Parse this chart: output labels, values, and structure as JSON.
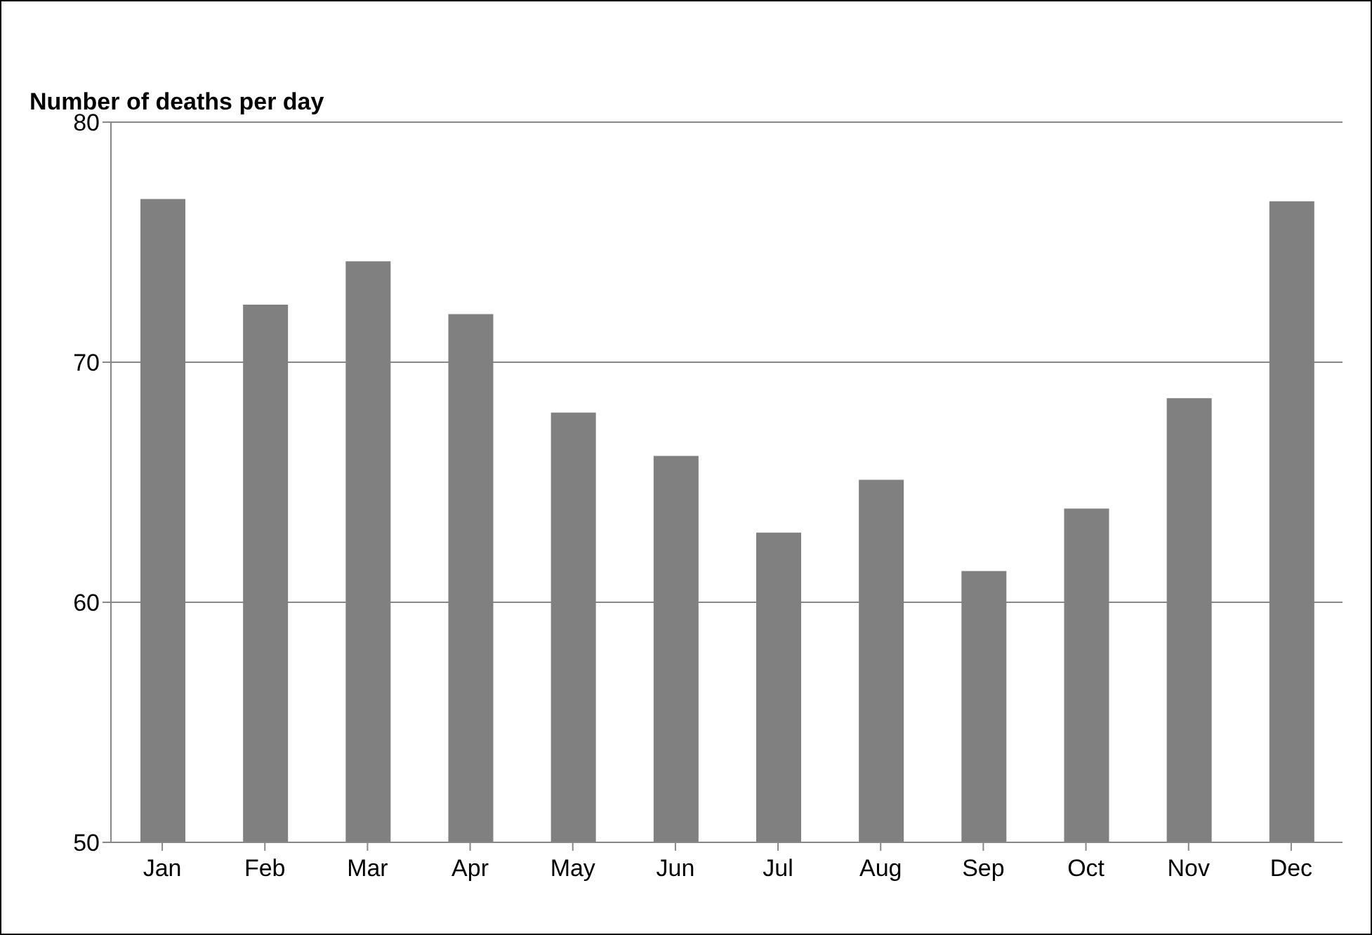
{
  "chart_data": {
    "type": "bar",
    "title": "Number of deaths per day",
    "categories": [
      "Jan",
      "Feb",
      "Mar",
      "Apr",
      "May",
      "Jun",
      "Jul",
      "Aug",
      "Sep",
      "Oct",
      "Nov",
      "Dec"
    ],
    "values": [
      76.8,
      72.4,
      74.2,
      72.0,
      67.9,
      66.1,
      62.9,
      65.1,
      61.3,
      63.9,
      68.5,
      76.7
    ],
    "color": "#808080",
    "ylim": [
      50,
      80
    ],
    "yticks": [
      50,
      60,
      70,
      80
    ],
    "grid": "y"
  }
}
